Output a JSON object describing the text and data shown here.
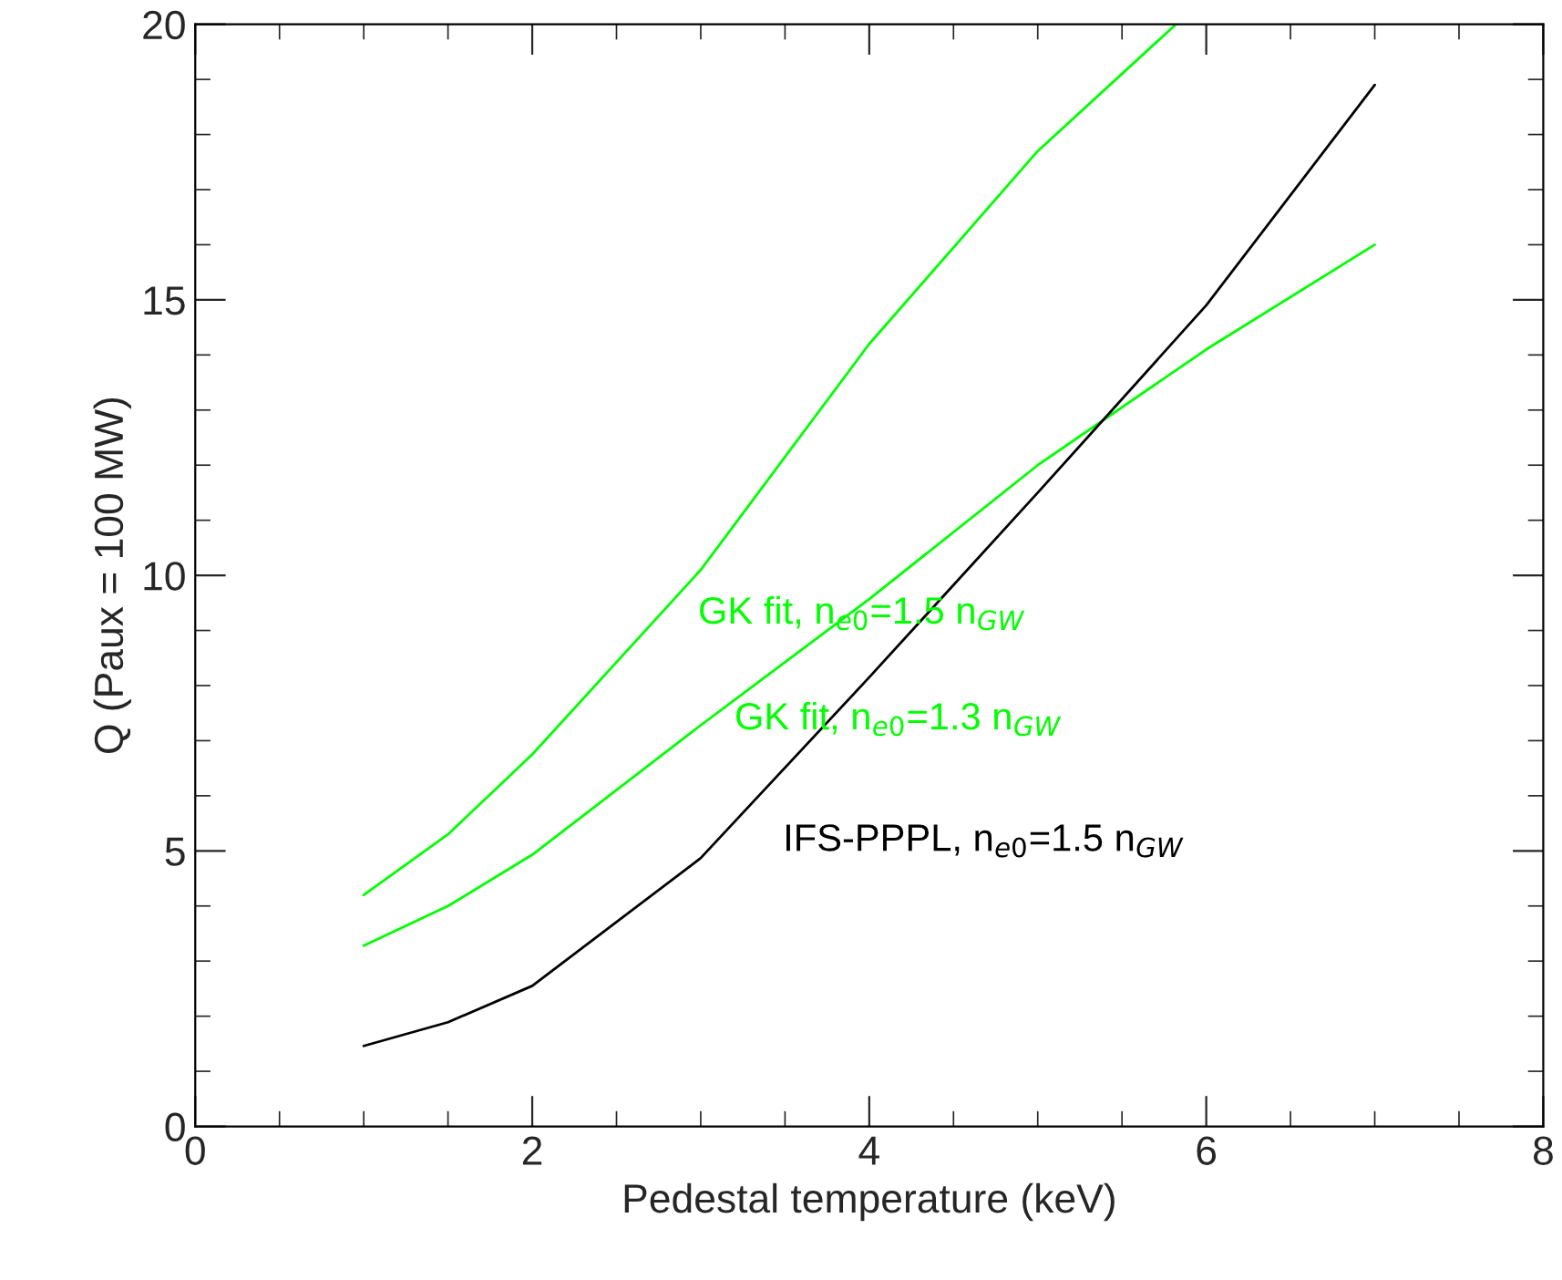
{
  "chart_data": {
    "type": "line",
    "xlabel": "Pedestal temperature (keV)",
    "ylabel": "Q (Paux = 100 MW)",
    "xlim": [
      0,
      8
    ],
    "xticks": [
      0,
      2,
      4,
      6,
      8
    ],
    "ylim": [
      0,
      20
    ],
    "yticks": [
      0,
      5,
      10,
      15,
      20
    ],
    "grid": false,
    "legend": false,
    "marker": "none",
    "line_style": "solid",
    "series": [
      {
        "name": "GK fit, n$_{e0}$=1.5 n$_{GW}$",
        "color": "#00ff00",
        "x": [
          1,
          1.5,
          2,
          3,
          4,
          5,
          5.82
        ],
        "values": [
          4.2,
          5.3,
          6.75,
          10.1,
          14.2,
          17.7,
          20.0
        ]
      },
      {
        "name": "GK fit, n$_{e0}$=1.3 n$_{GW}$",
        "color": "#00ff00",
        "x": [
          1,
          1.5,
          2,
          3,
          4,
          5,
          6,
          7
        ],
        "values": [
          3.28,
          4.0,
          4.93,
          7.28,
          9.57,
          12.0,
          14.1,
          16.0
        ]
      },
      {
        "name": "IFS-PPPL, n$_{e0}$=1.5 n$_{GW}$",
        "color": "#000000",
        "x": [
          1,
          1.5,
          2,
          3,
          4,
          5,
          6,
          7
        ],
        "values": [
          1.46,
          1.89,
          2.55,
          4.87,
          8.15,
          11.5,
          14.9,
          18.9
        ]
      }
    ]
  }
}
